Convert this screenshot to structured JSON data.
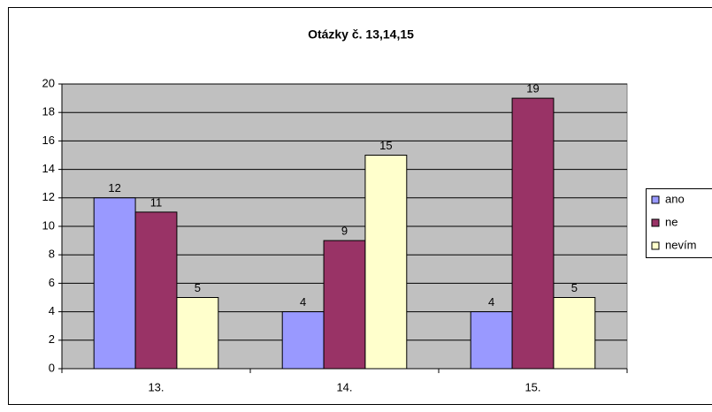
{
  "chart_data": {
    "type": "bar",
    "title": "Otázky č. 13,14,15",
    "categories": [
      "13.",
      "14.",
      "15."
    ],
    "series": [
      {
        "name": "ano",
        "color": "#9999ff",
        "values": [
          12,
          4,
          4
        ]
      },
      {
        "name": "ne",
        "color": "#993366",
        "values": [
          11,
          9,
          19
        ]
      },
      {
        "name": "nevím",
        "color": "#ffffcc",
        "values": [
          5,
          15,
          5
        ]
      }
    ],
    "ylim": [
      0,
      20
    ],
    "yticks": [
      0,
      2,
      4,
      6,
      8,
      10,
      12,
      14,
      16,
      18,
      20
    ],
    "grid": true,
    "legend": "right",
    "plot_background": "#c0c0c0"
  }
}
